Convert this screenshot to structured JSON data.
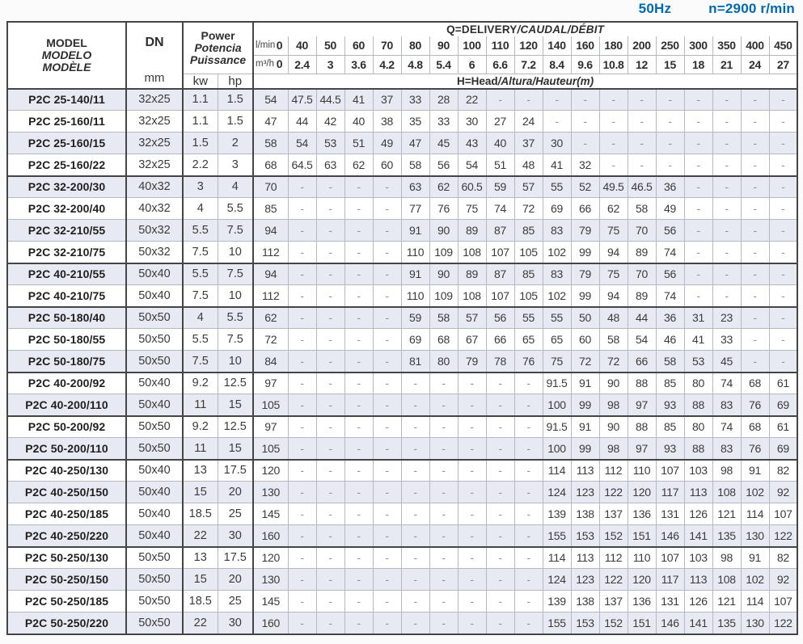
{
  "titlebar": {
    "frequency": "50Hz",
    "speed": "n=2900 r/min",
    "accent_color": "#0069b4"
  },
  "table": {
    "header": {
      "model_lines": [
        "MODEL",
        "MODELO",
        "MODÈLE"
      ],
      "dn_label": "DN",
      "dn_unit": "mm",
      "power_lines": [
        "Power",
        "Potencia",
        "Puissance"
      ],
      "kw_label": "kw",
      "hp_label": "hp",
      "q_title_main": "Q=DELIVERY",
      "q_title_italic": "/CAUDAL/DÉBIT",
      "h_title_main": "H=Head",
      "h_title_italic": "/Altura/Hauteur(m)",
      "lmin_label": "l/min",
      "m3h_label": "m³/h",
      "lmin_values": [
        "0",
        "40",
        "50",
        "60",
        "70",
        "80",
        "90",
        "100",
        "110",
        "120",
        "140",
        "160",
        "180",
        "200",
        "250",
        "300",
        "350",
        "400",
        "450"
      ],
      "m3h_values": [
        "0",
        "2.4",
        "3",
        "3.6",
        "4.2",
        "4.8",
        "5.4",
        "6",
        "6.6",
        "7.2",
        "8.4",
        "9.6",
        "10.8",
        "12",
        "15",
        "18",
        "21",
        "24",
        "27"
      ]
    },
    "row_colors": {
      "alt_row": "#e8eaf3",
      "plain_row": "#ffffff"
    },
    "rows": [
      {
        "model": "P2C 25-140/11",
        "dn": "32x25",
        "kw": "1.1",
        "hp": "1.5",
        "heads": [
          "54",
          "47.5",
          "44.5",
          "41",
          "37",
          "33",
          "28",
          "22",
          "-",
          "-",
          "-",
          "-",
          "-",
          "-",
          "-",
          "-",
          "-",
          "-",
          "-"
        ],
        "group_end": false
      },
      {
        "model": "P2C 25-160/11",
        "dn": "32x25",
        "kw": "1.1",
        "hp": "1.5",
        "heads": [
          "47",
          "44",
          "42",
          "40",
          "38",
          "35",
          "33",
          "30",
          "27",
          "24",
          "-",
          "-",
          "-",
          "-",
          "-",
          "-",
          "-",
          "-",
          "-"
        ],
        "group_end": false
      },
      {
        "model": "P2C 25-160/15",
        "dn": "32x25",
        "kw": "1.5",
        "hp": "2",
        "heads": [
          "58",
          "54",
          "53",
          "51",
          "49",
          "47",
          "45",
          "43",
          "40",
          "37",
          "30",
          "-",
          "-",
          "-",
          "-",
          "-",
          "-",
          "-",
          "-"
        ],
        "group_end": false
      },
      {
        "model": "P2C 25-160/22",
        "dn": "32x25",
        "kw": "2.2",
        "hp": "3",
        "heads": [
          "68",
          "64.5",
          "63",
          "62",
          "60",
          "58",
          "56",
          "54",
          "51",
          "48",
          "41",
          "32",
          "-",
          "-",
          "-",
          "-",
          "-",
          "-",
          "-"
        ],
        "group_end": true
      },
      {
        "model": "P2C 32-200/30",
        "dn": "40x32",
        "kw": "3",
        "hp": "4",
        "heads": [
          "70",
          "-",
          "-",
          "-",
          "-",
          "63",
          "62",
          "60.5",
          "59",
          "57",
          "55",
          "52",
          "49.5",
          "46.5",
          "36",
          "-",
          "-",
          "-",
          "-"
        ],
        "group_end": false
      },
      {
        "model": "P2C 32-200/40",
        "dn": "40x32",
        "kw": "4",
        "hp": "5.5",
        "heads": [
          "85",
          "-",
          "-",
          "-",
          "-",
          "77",
          "76",
          "75",
          "74",
          "72",
          "69",
          "66",
          "62",
          "58",
          "49",
          "-",
          "-",
          "-",
          "-"
        ],
        "group_end": false
      },
      {
        "model": "P2C 32-210/55",
        "dn": "50x32",
        "kw": "5.5",
        "hp": "7.5",
        "heads": [
          "94",
          "-",
          "-",
          "-",
          "-",
          "91",
          "90",
          "89",
          "87",
          "85",
          "83",
          "79",
          "75",
          "70",
          "56",
          "-",
          "-",
          "-",
          "-"
        ],
        "group_end": false
      },
      {
        "model": "P2C 32-210/75",
        "dn": "50x32",
        "kw": "7.5",
        "hp": "10",
        "heads": [
          "112",
          "-",
          "-",
          "-",
          "-",
          "110",
          "109",
          "108",
          "107",
          "105",
          "102",
          "99",
          "94",
          "89",
          "74",
          "-",
          "-",
          "-",
          "-"
        ],
        "group_end": true
      },
      {
        "model": "P2C 40-210/55",
        "dn": "50x40",
        "kw": "5.5",
        "hp": "7.5",
        "heads": [
          "94",
          "-",
          "-",
          "-",
          "-",
          "91",
          "90",
          "89",
          "87",
          "85",
          "83",
          "79",
          "75",
          "70",
          "56",
          "-",
          "-",
          "-",
          "-"
        ],
        "group_end": false
      },
      {
        "model": "P2C 40-210/75",
        "dn": "50x40",
        "kw": "7.5",
        "hp": "10",
        "heads": [
          "112",
          "-",
          "-",
          "-",
          "-",
          "110",
          "109",
          "108",
          "107",
          "105",
          "102",
          "99",
          "94",
          "89",
          "74",
          "-",
          "-",
          "-",
          "-"
        ],
        "group_end": true
      },
      {
        "model": "P2C 50-180/40",
        "dn": "50x50",
        "kw": "4",
        "hp": "5.5",
        "heads": [
          "62",
          "-",
          "-",
          "-",
          "-",
          "59",
          "58",
          "57",
          "56",
          "55",
          "55",
          "50",
          "48",
          "44",
          "36",
          "31",
          "23",
          "-",
          "-"
        ],
        "group_end": false
      },
      {
        "model": "P2C 50-180/55",
        "dn": "50x50",
        "kw": "5.5",
        "hp": "7.5",
        "heads": [
          "72",
          "-",
          "-",
          "-",
          "-",
          "69",
          "68",
          "67",
          "66",
          "65",
          "65",
          "60",
          "58",
          "54",
          "46",
          "41",
          "33",
          "-",
          "-"
        ],
        "group_end": false
      },
      {
        "model": "P2C 50-180/75",
        "dn": "50x50",
        "kw": "7.5",
        "hp": "10",
        "heads": [
          "84",
          "-",
          "-",
          "-",
          "-",
          "81",
          "80",
          "79",
          "78",
          "76",
          "75",
          "72",
          "72",
          "66",
          "58",
          "53",
          "45",
          "-",
          "-"
        ],
        "group_end": true
      },
      {
        "model": "P2C 40-200/92",
        "dn": "50x40",
        "kw": "9.2",
        "hp": "12.5",
        "heads": [
          "97",
          "-",
          "-",
          "-",
          "-",
          "-",
          "-",
          "-",
          "-",
          "-",
          "91.5",
          "91",
          "90",
          "88",
          "85",
          "80",
          "74",
          "68",
          "61"
        ],
        "group_end": false
      },
      {
        "model": "P2C 40-200/110",
        "dn": "50x40",
        "kw": "11",
        "hp": "15",
        "heads": [
          "105",
          "-",
          "-",
          "-",
          "-",
          "-",
          "-",
          "-",
          "-",
          "-",
          "100",
          "99",
          "98",
          "97",
          "93",
          "88",
          "83",
          "76",
          "69"
        ],
        "group_end": true
      },
      {
        "model": "P2C 50-200/92",
        "dn": "50x50",
        "kw": "9.2",
        "hp": "12.5",
        "heads": [
          "97",
          "-",
          "-",
          "-",
          "-",
          "-",
          "-",
          "-",
          "-",
          "-",
          "91.5",
          "91",
          "90",
          "88",
          "85",
          "80",
          "74",
          "68",
          "61"
        ],
        "group_end": false
      },
      {
        "model": "P2C 50-200/110",
        "dn": "50x50",
        "kw": "11",
        "hp": "15",
        "heads": [
          "105",
          "-",
          "-",
          "-",
          "-",
          "-",
          "-",
          "-",
          "-",
          "-",
          "100",
          "99",
          "98",
          "97",
          "93",
          "88",
          "83",
          "76",
          "69"
        ],
        "group_end": true
      },
      {
        "model": "P2C 40-250/130",
        "dn": "50x40",
        "kw": "13",
        "hp": "17.5",
        "heads": [
          "120",
          "-",
          "-",
          "-",
          "-",
          "-",
          "-",
          "-",
          "-",
          "-",
          "114",
          "113",
          "112",
          "110",
          "107",
          "103",
          "98",
          "91",
          "82"
        ],
        "group_end": false
      },
      {
        "model": "P2C 40-250/150",
        "dn": "50x40",
        "kw": "15",
        "hp": "20",
        "heads": [
          "130",
          "-",
          "-",
          "-",
          "-",
          "-",
          "-",
          "-",
          "-",
          "-",
          "124",
          "123",
          "122",
          "120",
          "117",
          "113",
          "108",
          "102",
          "92"
        ],
        "group_end": false
      },
      {
        "model": "P2C 40-250/185",
        "dn": "50x40",
        "kw": "18.5",
        "hp": "25",
        "heads": [
          "145",
          "-",
          "-",
          "-",
          "-",
          "-",
          "-",
          "-",
          "-",
          "-",
          "139",
          "138",
          "137",
          "136",
          "131",
          "126",
          "121",
          "114",
          "107"
        ],
        "group_end": false
      },
      {
        "model": "P2C 40-250/220",
        "dn": "50x40",
        "kw": "22",
        "hp": "30",
        "heads": [
          "160",
          "-",
          "-",
          "-",
          "-",
          "-",
          "-",
          "-",
          "-",
          "-",
          "155",
          "153",
          "152",
          "151",
          "146",
          "141",
          "135",
          "130",
          "122"
        ],
        "group_end": true
      },
      {
        "model": "P2C 50-250/130",
        "dn": "50x50",
        "kw": "13",
        "hp": "17.5",
        "heads": [
          "120",
          "-",
          "-",
          "-",
          "-",
          "-",
          "-",
          "-",
          "-",
          "-",
          "114",
          "113",
          "112",
          "110",
          "107",
          "103",
          "98",
          "91",
          "82"
        ],
        "group_end": false
      },
      {
        "model": "P2C 50-250/150",
        "dn": "50x50",
        "kw": "15",
        "hp": "20",
        "heads": [
          "130",
          "-",
          "-",
          "-",
          "-",
          "-",
          "-",
          "-",
          "-",
          "-",
          "124",
          "123",
          "122",
          "120",
          "117",
          "113",
          "108",
          "102",
          "92"
        ],
        "group_end": false
      },
      {
        "model": "P2C 50-250/185",
        "dn": "50x50",
        "kw": "18.5",
        "hp": "25",
        "heads": [
          "145",
          "-",
          "-",
          "-",
          "-",
          "-",
          "-",
          "-",
          "-",
          "-",
          "139",
          "138",
          "137",
          "136",
          "131",
          "126",
          "121",
          "114",
          "107"
        ],
        "group_end": false
      },
      {
        "model": "P2C 50-250/220",
        "dn": "50x50",
        "kw": "22",
        "hp": "30",
        "heads": [
          "160",
          "-",
          "-",
          "-",
          "-",
          "-",
          "-",
          "-",
          "-",
          "-",
          "155",
          "153",
          "152",
          "151",
          "146",
          "141",
          "135",
          "130",
          "122"
        ],
        "group_end": false
      }
    ]
  }
}
